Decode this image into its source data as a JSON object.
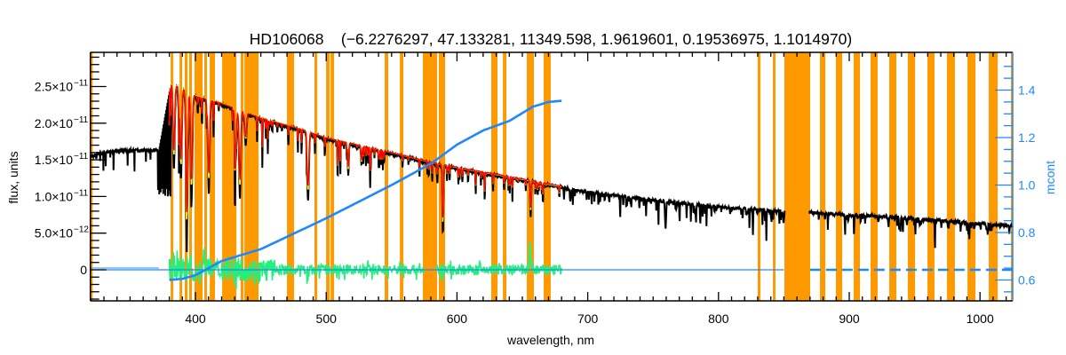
{
  "chart_data": {
    "type": "line",
    "title": "HD106068    (−6.2276297, 47.133281, 11349.598, 1.9619601, 0.19536975, 1.1014970)",
    "xlabel": "wavelength, nm",
    "ylabel": "flux, units",
    "y2label": "mcont",
    "xlim": [
      319.6,
      1025
    ],
    "ylim": [
      -4.24e-12,
      2.966e-11
    ],
    "y2lim": [
      0.512,
      1.559
    ],
    "grid": false,
    "colors": {
      "observed": "#000000",
      "model": "#ff0000",
      "model_alt": "#ffff00",
      "residual": "#22f07a",
      "mcont": "#1e88ff",
      "bands": "#ff9900",
      "right_axis": "#1e88ff"
    },
    "xticks": [
      {
        "value": 400,
        "label": "400"
      },
      {
        "value": 500,
        "label": "500"
      },
      {
        "value": 600,
        "label": "600"
      },
      {
        "value": 700,
        "label": "700"
      },
      {
        "value": 800,
        "label": "800"
      },
      {
        "value": 900,
        "label": "900"
      },
      {
        "value": 1000,
        "label": "1000"
      }
    ],
    "yticks": [
      {
        "value": 0,
        "label": "0",
        "exp": ""
      },
      {
        "value": 5e-12,
        "label": "5.0×10",
        "exp": "−12"
      },
      {
        "value": 1e-11,
        "label": "1.0×10",
        "exp": "−11"
      },
      {
        "value": 1.5e-11,
        "label": "1.5×10",
        "exp": "−11"
      },
      {
        "value": 2e-11,
        "label": "2.0×10",
        "exp": "−11"
      },
      {
        "value": 2.5e-11,
        "label": "2.5×10",
        "exp": "−11"
      }
    ],
    "y2ticks": [
      {
        "value": 0.6,
        "label": "0.6"
      },
      {
        "value": 0.8,
        "label": "0.8"
      },
      {
        "value": 1.0,
        "label": "1.0"
      },
      {
        "value": 1.2,
        "label": "1.2"
      },
      {
        "value": 1.4,
        "label": "1.4"
      }
    ],
    "masked_bands_nm": [
      [
        319.6,
        321.4
      ],
      [
        381.0,
        383.0
      ],
      [
        387.8,
        389.8
      ],
      [
        391.8,
        393.9
      ],
      [
        395.2,
        397.3
      ],
      [
        399.3,
        405.4
      ],
      [
        406.8,
        408.8
      ],
      [
        410.9,
        414.9
      ],
      [
        420.4,
        431.3
      ],
      [
        434.6,
        436.7
      ],
      [
        437.4,
        448.2
      ],
      [
        470.0,
        475.4
      ],
      [
        491.0,
        493.1
      ],
      [
        499.9,
        502.6
      ],
      [
        503.3,
        506.0
      ],
      [
        544.7,
        547.4
      ],
      [
        556.3,
        559.0
      ],
      [
        573.9,
        584.8
      ],
      [
        586.1,
        590.9
      ],
      [
        626.2,
        631.0
      ],
      [
        635.1,
        637.8
      ],
      [
        653.4,
        658.8
      ],
      [
        666.3,
        671.7
      ],
      [
        830.0,
        832.1
      ],
      [
        841.6,
        843.6
      ],
      [
        850.4,
        870.1
      ],
      [
        877.6,
        881.7
      ],
      [
        889.8,
        894.6
      ],
      [
        903.4,
        908.2
      ],
      [
        916.3,
        921.7
      ],
      [
        930.6,
        936.0
      ],
      [
        944.8,
        950.3
      ],
      [
        959.8,
        965.2
      ],
      [
        974.7,
        980.8
      ],
      [
        990.4,
        996.5
      ],
      [
        1006.7,
        1013.5
      ],
      [
        1023.6,
        1025.0
      ]
    ],
    "observed_continuum": {
      "x": [
        320,
        330,
        340,
        350,
        360,
        370,
        372,
        381,
        390,
        400,
        420,
        450,
        480,
        500,
        550,
        580,
        600,
        650,
        680,
        700,
        750,
        800,
        850,
        900,
        950,
        1000,
        1025
      ],
      "y": [
        1.55e-11,
        1.6e-11,
        1.62e-11,
        1.63e-11,
        1.63e-11,
        1.63e-11,
        1.62e-11,
        2.52e-11,
        2.45e-11,
        2.35e-11,
        2.25e-11,
        2.05e-11,
        1.9e-11,
        1.78e-11,
        1.58e-11,
        1.45e-11,
        1.38e-11,
        1.22e-11,
        1.12e-11,
        1.06e-11,
        9.5e-12,
        8.6e-12,
        8e-12,
        7.5e-12,
        7e-12,
        6.3e-12,
        6e-12
      ]
    },
    "absorption_lines": [
      [
        383.5,
        0.45
      ],
      [
        388.9,
        0.5
      ],
      [
        393.4,
        0.77
      ],
      [
        397.0,
        0.6
      ],
      [
        410.2,
        0.55
      ],
      [
        430.8,
        0.3
      ],
      [
        434.0,
        0.55
      ],
      [
        438.4,
        0.2
      ],
      [
        486.1,
        0.5
      ],
      [
        516.9,
        0.25
      ],
      [
        527.0,
        0.15
      ],
      [
        589.2,
        0.66
      ],
      [
        656.3,
        0.35
      ],
      [
        686.7,
        0.15
      ],
      [
        759.5,
        0.4
      ],
      [
        822.0,
        0.1
      ],
      [
        849.8,
        0.2
      ],
      [
        854.2,
        0.25
      ],
      [
        866.2,
        0.25
      ],
      [
        899.0,
        0.1
      ],
      [
        930.0,
        0.12
      ],
      [
        955.0,
        0.12
      ],
      [
        1005.0,
        0.15
      ]
    ],
    "model_range_nm": [
      380,
      680
    ],
    "residual_range_nm": [
      380,
      680
    ],
    "data_gap_nm": [
      851,
      869
    ],
    "mcont": {
      "x": [
        380,
        390,
        400,
        420,
        450,
        500,
        550,
        580,
        600,
        620,
        640,
        658,
        670,
        680
      ],
      "y": [
        0.6,
        0.605,
        0.62,
        0.68,
        0.73,
        0.86,
        1.0,
        1.09,
        1.17,
        1.23,
        1.27,
        1.33,
        1.35,
        1.355
      ]
    },
    "zero_line": {
      "y": 0,
      "solid_until_nm": 850,
      "dashed_from_nm": 870
    }
  }
}
